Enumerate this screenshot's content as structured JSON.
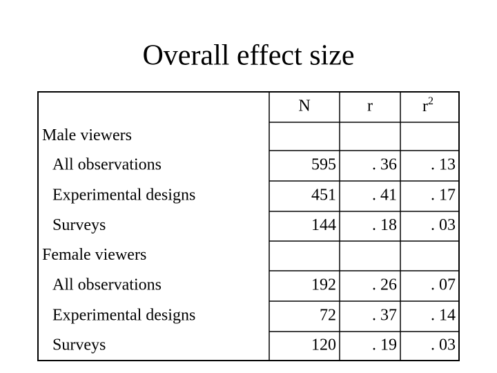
{
  "title": "Overall effect size",
  "table": {
    "header": {
      "n": "N",
      "r": "r",
      "r2": {
        "base": "r",
        "sup": "2"
      }
    },
    "rows": [
      {
        "label": "Male viewers",
        "group": true
      },
      {
        "label": "All observations",
        "cells": [
          "595",
          ". 36",
          ". 13"
        ]
      },
      {
        "label": "Experimental designs",
        "cells": [
          "451",
          ". 41",
          ". 17"
        ]
      },
      {
        "label": "Surveys",
        "cells": [
          "144",
          ". 18",
          ". 03"
        ]
      },
      {
        "label": "Female viewers",
        "group": true
      },
      {
        "label": "All observations",
        "cells": [
          "192",
          ". 26",
          ". 07"
        ]
      },
      {
        "label": "Experimental designs",
        "cells": [
          "72",
          ". 37",
          ". 14"
        ]
      },
      {
        "label": "Surveys",
        "cells": [
          "120",
          ". 19",
          ". 03"
        ]
      }
    ]
  }
}
